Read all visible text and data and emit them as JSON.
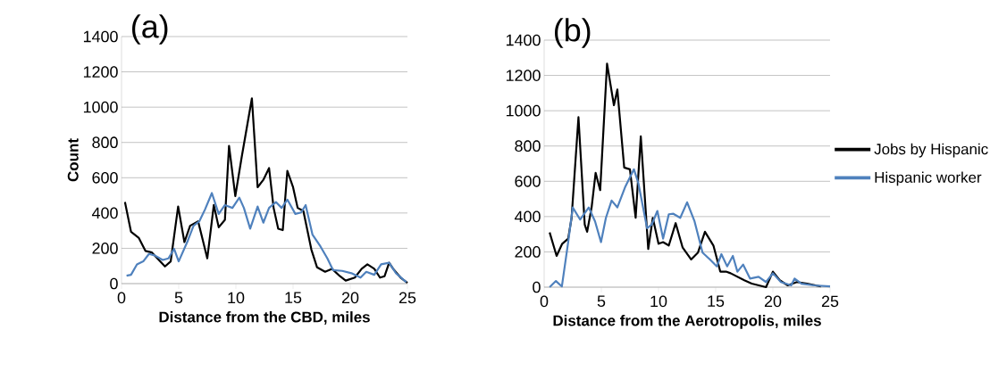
{
  "chart_data": [
    {
      "type": "line",
      "annotations": [
        "(a)"
      ],
      "xlabel": "Distance from the CBD, miles",
      "ylabel": "Count",
      "xlim": [
        0,
        25
      ],
      "xticks": [
        0,
        5,
        10,
        15,
        20,
        25
      ],
      "ylim": [
        0,
        1400
      ],
      "yticks": [
        0,
        200,
        400,
        600,
        800,
        1000,
        1200,
        1400
      ],
      "grid": "y",
      "legend": false,
      "series": [
        {
          "color": "#000000",
          "x": [
            0.3,
            0.83,
            1.5,
            2.1,
            2.66,
            3.8,
            4.3,
            4.95,
            5.5,
            6.0,
            6.7,
            7.5,
            8.07,
            8.5,
            9.04,
            9.4,
            9.95,
            10.5,
            11.4,
            11.9,
            12.4,
            12.9,
            13.3,
            13.7,
            14.1,
            14.5,
            15.0,
            15.4,
            15.9,
            16.6,
            17.1,
            17.8,
            18.4,
            19.1,
            19.6,
            20.4,
            21.0,
            21.5,
            22.1,
            22.6,
            23.0,
            23.4,
            23.75,
            24.4,
            25
          ],
          "values": [
            462,
            294,
            260,
            185,
            176,
            97,
            126,
            437,
            235,
            328,
            353,
            143,
            445,
            319,
            361,
            781,
            496,
            714,
            1050,
            546,
            588,
            655,
            429,
            311,
            303,
            639,
            546,
            429,
            412,
            193,
            92,
            67,
            84,
            42,
            17,
            34,
            84,
            109,
            84,
            34,
            42,
            118,
            84,
            34,
            5
          ]
        },
        {
          "color": "#4f81bd",
          "x": [
            0.44,
            0.83,
            1.35,
            1.9,
            2.4,
            2.9,
            3.6,
            4.1,
            4.6,
            5.0,
            5.8,
            6.3,
            6.8,
            7.3,
            7.9,
            8.5,
            9.04,
            9.7,
            10.3,
            10.7,
            11.25,
            11.9,
            12.4,
            12.9,
            13.5,
            14.0,
            14.5,
            15.2,
            15.7,
            16.1,
            16.7,
            17.4,
            18.0,
            18.5,
            19.3,
            20.1,
            20.9,
            21.4,
            22.1,
            22.7,
            23.4,
            24.0,
            24.9
          ],
          "values": [
            45,
            50,
            109,
            126,
            168,
            160,
            134,
            143,
            197,
            126,
            244,
            328,
            353,
            420,
            513,
            395,
            445,
            429,
            487,
            429,
            311,
            437,
            345,
            429,
            462,
            429,
            476,
            395,
            403,
            445,
            277,
            210,
            143,
            76,
            72,
            59,
            34,
            67,
            50,
            109,
            118,
            59,
            8
          ]
        }
      ]
    },
    {
      "type": "line",
      "annotations": [
        "(b)"
      ],
      "xlabel": "Distance from the Aerotropolis, miles",
      "xlim": [
        0,
        25
      ],
      "xticks": [
        0,
        5,
        10,
        15,
        20,
        25
      ],
      "ylim": [
        0,
        1400
      ],
      "yticks": [
        0,
        200,
        400,
        600,
        800,
        1000,
        1200,
        1400
      ],
      "grid": "y",
      "legend": "right",
      "series": [
        {
          "name": "Jobs by Hispanic",
          "color": "#000000",
          "x": [
            0.48,
            1.09,
            1.58,
            2.1,
            2.4,
            3.0,
            3.55,
            3.76,
            4.15,
            4.5,
            4.9,
            5.5,
            6.1,
            6.4,
            7.0,
            7.5,
            8.0,
            8.45,
            9.1,
            9.5,
            10.0,
            10.4,
            10.9,
            11.5,
            12.1,
            12.85,
            13.45,
            14.06,
            14.8,
            15.4,
            15.9,
            16.3,
            16.9,
            17.5,
            18.15,
            19.4,
            20.0,
            20.6,
            21.3,
            22.1,
            23.0,
            24.2
          ],
          "values": [
            310,
            177,
            246,
            275,
            393,
            963,
            354,
            314,
            452,
            648,
            550,
            1267,
            1031,
            1120,
            678,
            668,
            393,
            855,
            216,
            393,
            246,
            255,
            236,
            363,
            226,
            157,
            196,
            314,
            236,
            88,
            88,
            79,
            59,
            39,
            20,
            0,
            88,
            39,
            10,
            29,
            20,
            4
          ]
        },
        {
          "name": "Hispanic worker",
          "color": "#4f81bd",
          "x": [
            0.48,
            1.03,
            1.55,
            2.1,
            2.5,
            3.15,
            3.9,
            4.45,
            4.97,
            5.4,
            5.9,
            6.4,
            7.1,
            7.85,
            8.24,
            9.0,
            9.4,
            9.9,
            10.4,
            10.9,
            11.3,
            11.9,
            12.5,
            13.15,
            13.85,
            14.5,
            15.1,
            15.5,
            16.0,
            16.5,
            16.9,
            17.4,
            18.0,
            18.75,
            19.4,
            20.0,
            20.7,
            21.6,
            21.9,
            22.5,
            23.6,
            25
          ],
          "values": [
            0,
            35,
            4,
            255,
            452,
            383,
            452,
            373,
            255,
            393,
            491,
            452,
            570,
            668,
            589,
            334,
            354,
            432,
            275,
            413,
            416,
            393,
            481,
            373,
            196,
            157,
            118,
            187,
            118,
            177,
            88,
            128,
            49,
            59,
            29,
            79,
            29,
            10,
            49,
            20,
            10,
            4
          ]
        }
      ]
    }
  ]
}
